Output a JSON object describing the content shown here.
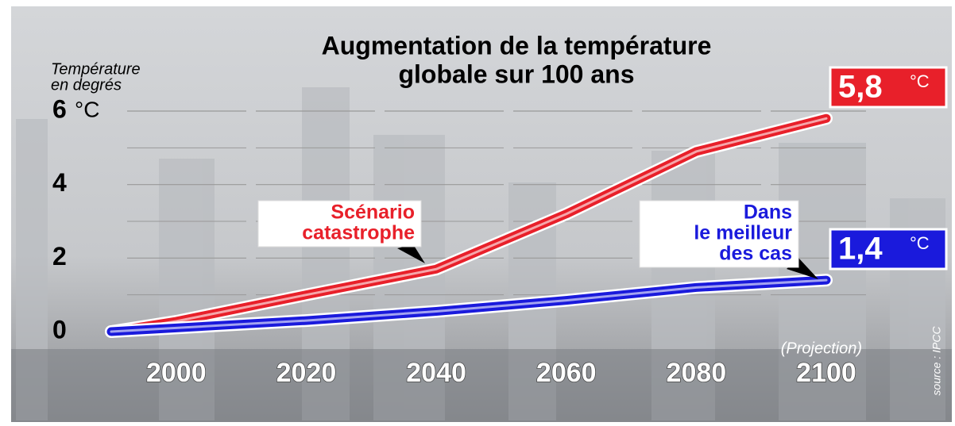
{
  "chart_data": {
    "type": "line",
    "title": [
      "Augmentation de la température",
      "globale sur 100 ans"
    ],
    "y_label": [
      "Température",
      "en degrés"
    ],
    "y_unit_label": "°C",
    "x": [
      1990,
      2000,
      2020,
      2040,
      2060,
      2080,
      2100
    ],
    "xlim": [
      1990,
      2100
    ],
    "xticks": [
      2000,
      2020,
      2040,
      2060,
      2080,
      2100
    ],
    "ylim": [
      0,
      6
    ],
    "yticks": [
      0,
      2,
      4,
      6
    ],
    "grid": true,
    "series": [
      {
        "name": [
          "Scénario",
          "catastrophe"
        ],
        "color": "#e8202a",
        "values": [
          0,
          0.28,
          1.0,
          1.7,
          3.2,
          4.9,
          5.8
        ],
        "end_label": "5,8",
        "end_unit": "°C"
      },
      {
        "name": [
          "Dans",
          "le meilleur",
          "des cas"
        ],
        "color": "#1a1adc",
        "values": [
          0,
          0.1,
          0.3,
          0.55,
          0.85,
          1.2,
          1.4
        ],
        "end_label": "1,4",
        "end_unit": "°C"
      }
    ],
    "annotation": "(Projection)",
    "source": "source : IPCC"
  }
}
